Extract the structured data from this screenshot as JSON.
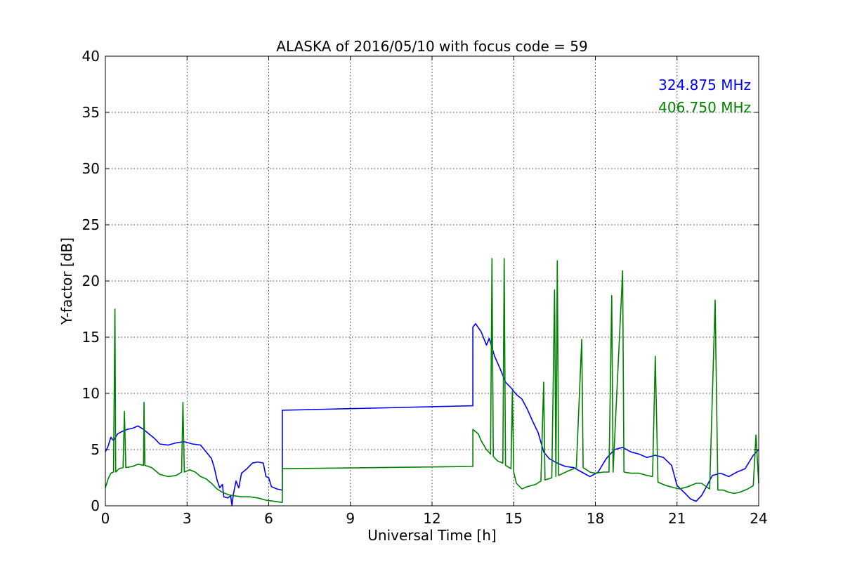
{
  "chart_data": {
    "type": "line",
    "title": "ALASKA of 2016/05/10 with focus code = 59",
    "xlabel": "Universal Time [h]",
    "ylabel": "Y-factor [dB]",
    "xlim": [
      0,
      24
    ],
    "ylim": [
      0,
      40
    ],
    "x_ticks": [
      0,
      3,
      6,
      9,
      12,
      15,
      18,
      21,
      24
    ],
    "y_ticks": [
      0,
      5,
      10,
      15,
      20,
      25,
      30,
      35,
      40
    ],
    "grid": true,
    "legend_placement": "top-right",
    "series": [
      {
        "name": "324.875 MHz",
        "color": "#0000ff",
        "points": [
          [
            0,
            4.8
          ],
          [
            0.1,
            5.3
          ],
          [
            0.2,
            6.1
          ],
          [
            0.3,
            5.8
          ],
          [
            0.45,
            6.4
          ],
          [
            0.6,
            6.6
          ],
          [
            0.8,
            6.8
          ],
          [
            1,
            6.9
          ],
          [
            1.2,
            7.1
          ],
          [
            1.4,
            6.8
          ],
          [
            1.6,
            6.4
          ],
          [
            1.8,
            6.0
          ],
          [
            2.0,
            5.5
          ],
          [
            2.3,
            5.4
          ],
          [
            2.6,
            5.6
          ],
          [
            2.9,
            5.7
          ],
          [
            3.2,
            5.5
          ],
          [
            3.5,
            5.4
          ],
          [
            3.7,
            4.8
          ],
          [
            3.9,
            4.2
          ],
          [
            4.0,
            3.4
          ],
          [
            4.1,
            2.3
          ],
          [
            4.2,
            1.6
          ],
          [
            4.3,
            1.9
          ],
          [
            4.35,
            0.8
          ],
          [
            4.5,
            0.7
          ],
          [
            4.6,
            0.9
          ],
          [
            4.65,
            0.0
          ],
          [
            4.7,
            1.0
          ],
          [
            4.8,
            2.2
          ],
          [
            4.9,
            1.6
          ],
          [
            5.0,
            2.9
          ],
          [
            5.2,
            3.3
          ],
          [
            5.4,
            3.8
          ],
          [
            5.6,
            3.9
          ],
          [
            5.8,
            3.8
          ],
          [
            5.9,
            2.6
          ],
          [
            6.0,
            2.5
          ],
          [
            6.1,
            1.7
          ],
          [
            6.3,
            1.5
          ],
          [
            6.5,
            1.4
          ],
          [
            6.5,
            8.5
          ],
          [
            13.5,
            8.9
          ],
          [
            13.5,
            15.9
          ],
          [
            13.6,
            16.2
          ],
          [
            13.8,
            15.5
          ],
          [
            14.0,
            14.3
          ],
          [
            14.1,
            14.9
          ],
          [
            14.3,
            13.3
          ],
          [
            14.5,
            12.2
          ],
          [
            14.7,
            11.0
          ],
          [
            14.9,
            10.5
          ],
          [
            15.1,
            9.9
          ],
          [
            15.3,
            9.5
          ],
          [
            15.5,
            8.6
          ],
          [
            15.7,
            7.5
          ],
          [
            15.9,
            6.5
          ],
          [
            16.1,
            4.8
          ],
          [
            16.3,
            4.2
          ],
          [
            16.6,
            3.8
          ],
          [
            16.9,
            3.5
          ],
          [
            17.2,
            3.4
          ],
          [
            17.5,
            3.0
          ],
          [
            17.8,
            2.6
          ],
          [
            18.1,
            3.0
          ],
          [
            18.4,
            4.2
          ],
          [
            18.7,
            5.0
          ],
          [
            19.0,
            5.2
          ],
          [
            19.3,
            4.8
          ],
          [
            19.6,
            4.6
          ],
          [
            19.9,
            4.3
          ],
          [
            20.2,
            4.5
          ],
          [
            20.5,
            4.3
          ],
          [
            20.8,
            3.6
          ],
          [
            21.0,
            1.8
          ],
          [
            21.3,
            1.1
          ],
          [
            21.5,
            0.6
          ],
          [
            21.7,
            0.4
          ],
          [
            21.9,
            0.9
          ],
          [
            22.1,
            1.8
          ],
          [
            22.3,
            2.7
          ],
          [
            22.6,
            2.9
          ],
          [
            22.9,
            2.6
          ],
          [
            23.2,
            3.0
          ],
          [
            23.5,
            3.3
          ],
          [
            23.8,
            4.5
          ],
          [
            24.0,
            5.0
          ]
        ]
      },
      {
        "name": "406.750 MHz",
        "color": "#008000",
        "points": [
          [
            0,
            1.6
          ],
          [
            0.1,
            2.4
          ],
          [
            0.2,
            2.9
          ],
          [
            0.3,
            3.0
          ],
          [
            0.35,
            17.5
          ],
          [
            0.38,
            3.0
          ],
          [
            0.5,
            3.3
          ],
          [
            0.65,
            3.4
          ],
          [
            0.7,
            8.4
          ],
          [
            0.75,
            3.4
          ],
          [
            1.0,
            3.5
          ],
          [
            1.2,
            3.7
          ],
          [
            1.4,
            3.6
          ],
          [
            1.42,
            9.2
          ],
          [
            1.45,
            3.6
          ],
          [
            1.7,
            3.4
          ],
          [
            2.0,
            2.8
          ],
          [
            2.3,
            2.6
          ],
          [
            2.6,
            2.7
          ],
          [
            2.8,
            3.0
          ],
          [
            2.85,
            9.2
          ],
          [
            2.9,
            3.0
          ],
          [
            3.1,
            3.2
          ],
          [
            3.3,
            3.0
          ],
          [
            3.5,
            2.6
          ],
          [
            3.7,
            2.4
          ],
          [
            3.9,
            2.0
          ],
          [
            4.1,
            1.5
          ],
          [
            4.3,
            1.2
          ],
          [
            4.5,
            1.0
          ],
          [
            4.7,
            0.9
          ],
          [
            5.0,
            0.8
          ],
          [
            5.3,
            0.8
          ],
          [
            5.6,
            0.7
          ],
          [
            5.9,
            0.5
          ],
          [
            6.2,
            0.4
          ],
          [
            6.5,
            0.3
          ],
          [
            6.5,
            3.3
          ],
          [
            13.5,
            3.5
          ],
          [
            13.5,
            6.8
          ],
          [
            13.7,
            6.4
          ],
          [
            13.8,
            5.8
          ],
          [
            14.0,
            5.0
          ],
          [
            14.15,
            4.6
          ],
          [
            14.2,
            22.0
          ],
          [
            14.25,
            4.4
          ],
          [
            14.4,
            4.0
          ],
          [
            14.6,
            3.8
          ],
          [
            14.65,
            22.0
          ],
          [
            14.7,
            3.6
          ],
          [
            14.9,
            3.3
          ],
          [
            14.95,
            10.2
          ],
          [
            15.0,
            3.0
          ],
          [
            15.1,
            2.0
          ],
          [
            15.3,
            1.5
          ],
          [
            15.5,
            1.7
          ],
          [
            15.8,
            1.9
          ],
          [
            16.0,
            2.2
          ],
          [
            16.1,
            11.0
          ],
          [
            16.15,
            2.3
          ],
          [
            16.4,
            2.5
          ],
          [
            16.5,
            19.2
          ],
          [
            16.55,
            2.6
          ],
          [
            16.6,
            21.8
          ],
          [
            16.65,
            2.7
          ],
          [
            17.0,
            3.1
          ],
          [
            17.3,
            3.4
          ],
          [
            17.5,
            14.8
          ],
          [
            17.55,
            3.4
          ],
          [
            17.8,
            3.0
          ],
          [
            18.0,
            2.9
          ],
          [
            18.3,
            3.0
          ],
          [
            18.5,
            3.0
          ],
          [
            18.6,
            18.7
          ],
          [
            18.65,
            3.0
          ],
          [
            19.0,
            20.9
          ],
          [
            19.05,
            3.0
          ],
          [
            19.3,
            2.9
          ],
          [
            19.6,
            2.9
          ],
          [
            19.9,
            2.7
          ],
          [
            20.1,
            2.6
          ],
          [
            20.2,
            13.3
          ],
          [
            20.3,
            2.1
          ],
          [
            20.6,
            1.8
          ],
          [
            20.9,
            1.6
          ],
          [
            21.1,
            1.5
          ],
          [
            21.4,
            1.7
          ],
          [
            21.7,
            2.0
          ],
          [
            21.9,
            2.0
          ],
          [
            22.2,
            1.5
          ],
          [
            22.4,
            18.3
          ],
          [
            22.5,
            1.4
          ],
          [
            22.7,
            1.4
          ],
          [
            22.9,
            1.2
          ],
          [
            23.1,
            1.1
          ],
          [
            23.3,
            1.2
          ],
          [
            23.6,
            1.5
          ],
          [
            23.8,
            1.8
          ],
          [
            23.9,
            6.3
          ],
          [
            24.0,
            2.0
          ]
        ]
      }
    ]
  }
}
